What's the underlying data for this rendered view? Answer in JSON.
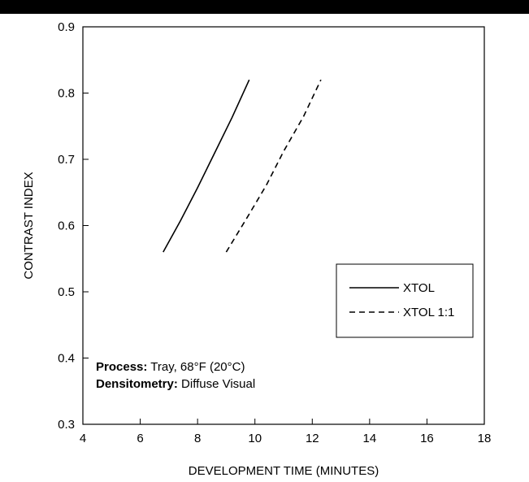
{
  "chart_data": {
    "type": "line",
    "title": "",
    "xlabel": "DEVELOPMENT TIME (MINUTES)",
    "ylabel": "CONTRAST INDEX",
    "xlim": [
      4,
      18
    ],
    "ylim": [
      0.3,
      0.9
    ],
    "xticks": [
      4,
      6,
      8,
      10,
      12,
      14,
      16,
      18
    ],
    "yticks": [
      0.3,
      0.4,
      0.5,
      0.6,
      0.7,
      0.8,
      0.9
    ],
    "xtick_labels": [
      "4",
      "6",
      "8",
      "10",
      "12",
      "14",
      "16",
      "18"
    ],
    "ytick_labels": [
      "0.3",
      "0.4",
      "0.5",
      "0.6",
      "0.7",
      "0.8",
      "0.9"
    ],
    "grid": false,
    "legend_position": "right",
    "series": [
      {
        "name": "XTOL",
        "style": "solid",
        "color": "#000000",
        "x": [
          6.8,
          7.4,
          8.0,
          8.6,
          9.2,
          9.8
        ],
        "y": [
          0.56,
          0.607,
          0.657,
          0.71,
          0.763,
          0.82
        ]
      },
      {
        "name": "XTOL 1:1",
        "style": "dashed",
        "color": "#000000",
        "x": [
          9.0,
          9.7,
          10.4,
          11.0,
          11.7,
          12.3
        ],
        "y": [
          0.56,
          0.61,
          0.661,
          0.712,
          0.765,
          0.82
        ]
      }
    ],
    "annotations": [
      {
        "label": "Process:",
        "text": " Tray, 68°F (20°C)"
      },
      {
        "label": "Densitometry:",
        "text": " Diffuse Visual"
      }
    ]
  }
}
